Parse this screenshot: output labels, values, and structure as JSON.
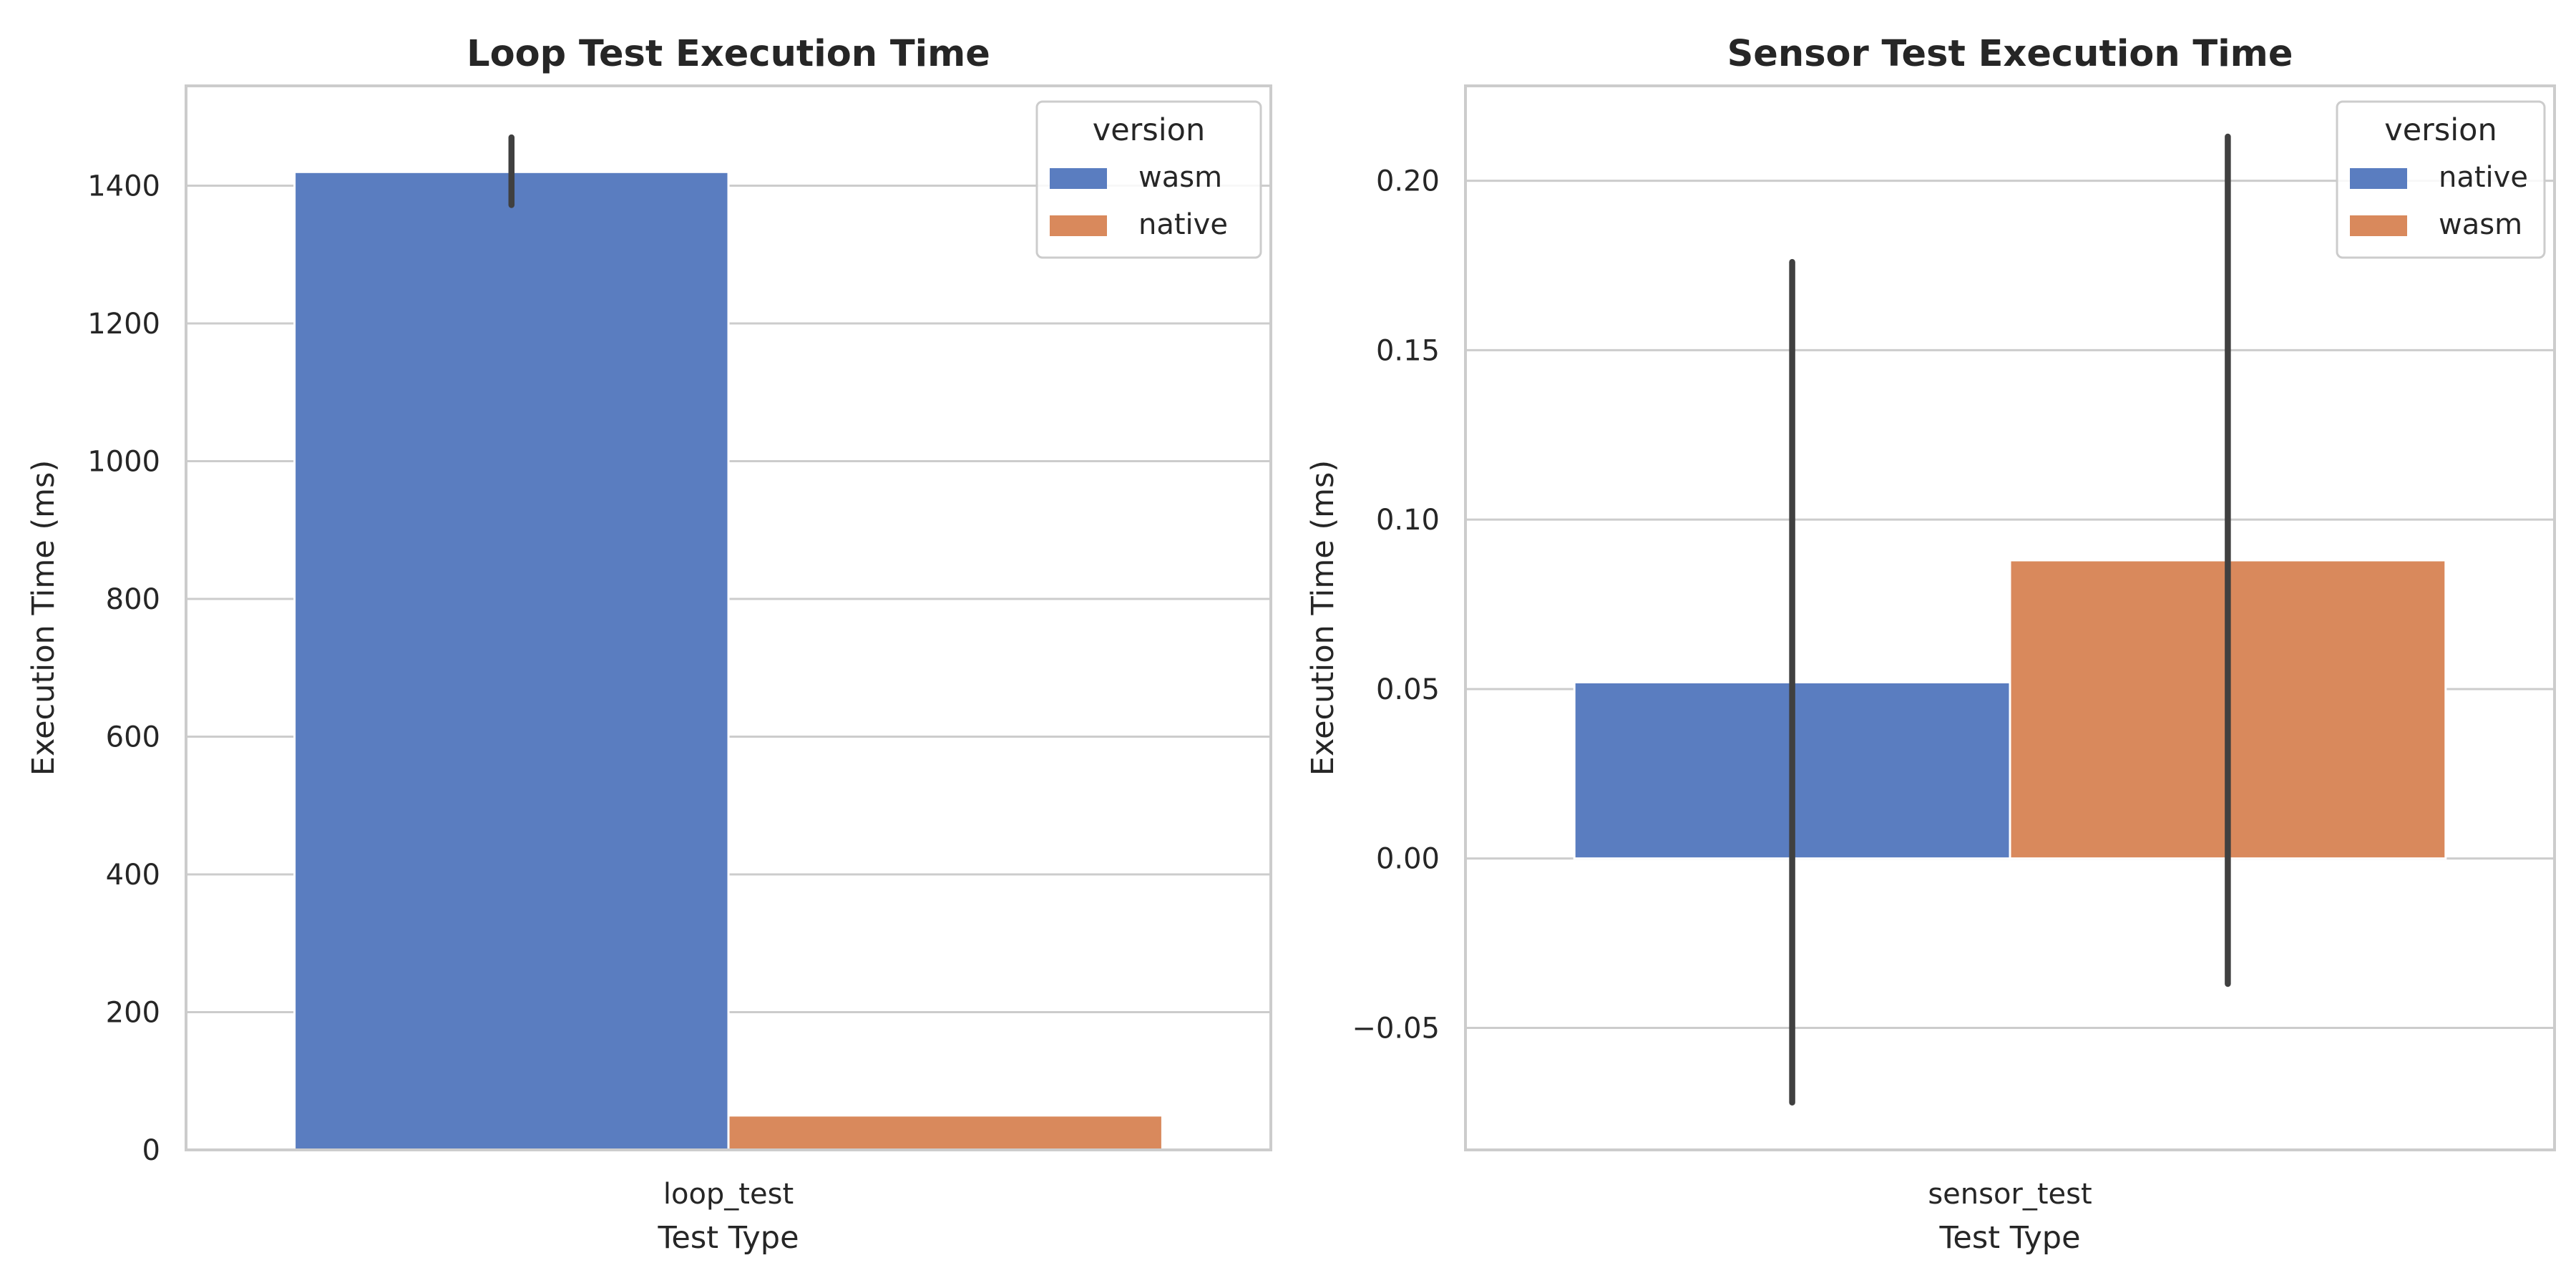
{
  "chart_data": [
    {
      "type": "bar",
      "title": "Loop Test Execution Time",
      "xlabel": "Test Type",
      "ylabel": "Execution Time (ms)",
      "categories": [
        "loop_test"
      ],
      "series": [
        {
          "name": "wasm",
          "color": "#5a7dc0",
          "values": [
            1420
          ],
          "error": [
            [
              1372,
              1470
            ]
          ]
        },
        {
          "name": "native",
          "color": "#d9895c",
          "values": [
            50
          ],
          "error": [
            null
          ]
        }
      ],
      "ylim": [
        0,
        1545
      ],
      "yticks": [
        0,
        200,
        400,
        600,
        800,
        1000,
        1200,
        1400
      ],
      "ytick_labels": [
        "0",
        "200",
        "400",
        "600",
        "800",
        "1000",
        "1200",
        "1400"
      ],
      "grid": true,
      "legend": {
        "title": "version",
        "position": "top-right"
      }
    },
    {
      "type": "bar",
      "title": "Sensor Test Execution Time",
      "xlabel": "Test Type",
      "ylabel": "Execution Time (ms)",
      "categories": [
        "sensor_test"
      ],
      "series": [
        {
          "name": "native",
          "color": "#5a7dc0",
          "values": [
            0.052
          ],
          "error": [
            [
              -0.072,
              0.176
            ]
          ]
        },
        {
          "name": "wasm",
          "color": "#d9895c",
          "values": [
            0.088
          ],
          "error": [
            [
              -0.037,
              0.213
            ]
          ]
        }
      ],
      "ylim": [
        -0.086,
        0.228
      ],
      "yticks": [
        -0.05,
        0.0,
        0.05,
        0.1,
        0.15,
        0.2
      ],
      "ytick_labels": [
        "−0.05",
        "0.00",
        "0.05",
        "0.10",
        "0.15",
        "0.20"
      ],
      "grid": true,
      "legend": {
        "title": "version",
        "position": "top-right"
      }
    }
  ]
}
